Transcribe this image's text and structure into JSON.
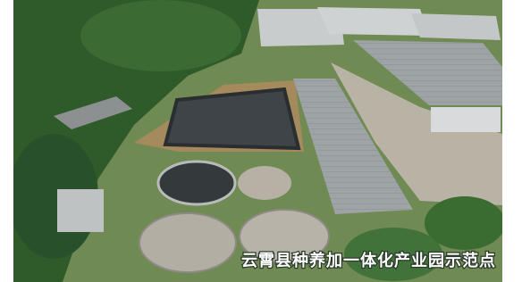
{
  "caption": "云霄县种养加一体化产业园示范点"
}
